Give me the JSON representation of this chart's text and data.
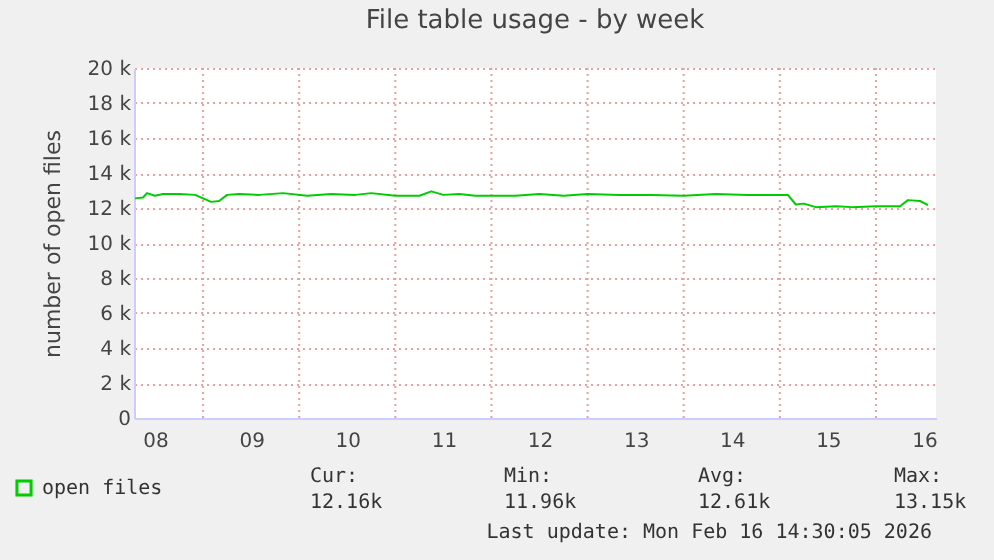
{
  "chart_data": {
    "type": "line",
    "title": "File table usage - by week",
    "ylabel": "number of open files",
    "x": [
      "2026-02-08T07:00",
      "2026-02-08T09:00",
      "2026-02-08T10:00",
      "2026-02-08T12:00",
      "2026-02-08T14:00",
      "2026-02-08T18:00",
      "2026-02-08T22:00",
      "2026-02-09T02:00",
      "2026-02-09T04:00",
      "2026-02-09T06:00",
      "2026-02-09T09:00",
      "2026-02-09T14:00",
      "2026-02-09T20:00",
      "2026-02-10T02:00",
      "2026-02-10T08:00",
      "2026-02-10T14:00",
      "2026-02-10T18:00",
      "2026-02-11T00:00",
      "2026-02-11T06:00",
      "2026-02-11T09:00",
      "2026-02-11T12:00",
      "2026-02-11T16:00",
      "2026-02-11T20:00",
      "2026-02-12T06:00",
      "2026-02-12T12:00",
      "2026-02-12T18:00",
      "2026-02-13T00:00",
      "2026-02-13T08:00",
      "2026-02-13T16:00",
      "2026-02-14T00:00",
      "2026-02-14T08:00",
      "2026-02-14T16:00",
      "2026-02-15T00:00",
      "2026-02-15T02:00",
      "2026-02-15T04:00",
      "2026-02-15T06:00",
      "2026-02-15T09:00",
      "2026-02-15T14:00",
      "2026-02-15T18:00",
      "2026-02-16T00:00",
      "2026-02-16T06:00",
      "2026-02-16T08:00",
      "2026-02-16T11:00",
      "2026-02-16T13:00"
    ],
    "series": [
      {
        "name": "open files",
        "color": "#00cc00",
        "values": [
          12550,
          12600,
          12850,
          12700,
          12800,
          12800,
          12750,
          12350,
          12400,
          12750,
          12800,
          12750,
          12850,
          12700,
          12800,
          12750,
          12850,
          12700,
          12700,
          12950,
          12750,
          12800,
          12700,
          12700,
          12800,
          12700,
          12800,
          12750,
          12750,
          12700,
          12800,
          12750,
          12750,
          12750,
          12200,
          12250,
          12050,
          12100,
          12050,
          12100,
          12100,
          12450,
          12400,
          12160
        ]
      }
    ],
    "xlim": [
      "2026-02-08T06:45",
      "2026-02-16T15:00"
    ],
    "xticks": [
      {
        "value": "2026-02-08T12:00",
        "label": "08"
      },
      {
        "value": "2026-02-09T00:00",
        "label": null
      },
      {
        "value": "2026-02-09T12:00",
        "label": "09"
      },
      {
        "value": "2026-02-10T00:00",
        "label": null
      },
      {
        "value": "2026-02-10T12:00",
        "label": "10"
      },
      {
        "value": "2026-02-11T00:00",
        "label": null
      },
      {
        "value": "2026-02-11T12:00",
        "label": "11"
      },
      {
        "value": "2026-02-12T00:00",
        "label": null
      },
      {
        "value": "2026-02-12T12:00",
        "label": "12"
      },
      {
        "value": "2026-02-13T00:00",
        "label": null
      },
      {
        "value": "2026-02-13T12:00",
        "label": "13"
      },
      {
        "value": "2026-02-14T00:00",
        "label": null
      },
      {
        "value": "2026-02-14T12:00",
        "label": "14"
      },
      {
        "value": "2026-02-15T00:00",
        "label": null
      },
      {
        "value": "2026-02-15T12:00",
        "label": "15"
      },
      {
        "value": "2026-02-16T00:00",
        "label": null
      },
      {
        "value": "2026-02-16T12:00",
        "label": "16"
      }
    ],
    "ylim": [
      0,
      20000
    ],
    "yticks": [
      {
        "value": 0,
        "label": "0"
      },
      {
        "value": 2000,
        "label": "2 k"
      },
      {
        "value": 4000,
        "label": "4 k"
      },
      {
        "value": 6000,
        "label": "6 k"
      },
      {
        "value": 8000,
        "label": "8 k"
      },
      {
        "value": 10000,
        "label": "10 k"
      },
      {
        "value": 12000,
        "label": "12 k"
      },
      {
        "value": 14000,
        "label": "14 k"
      },
      {
        "value": 16000,
        "label": "16 k"
      },
      {
        "value": 18000,
        "label": "18 k"
      },
      {
        "value": 20000,
        "label": "20 k"
      }
    ],
    "grid": true,
    "legend": "bottom left",
    "annotations": [
      "Cur:\n12.16k",
      "Min:\n11.96k",
      "Avg:\n12.61k",
      "Max:\n13.15k",
      "Last update: Mon Feb 16 14:30:05 2026"
    ]
  }
}
